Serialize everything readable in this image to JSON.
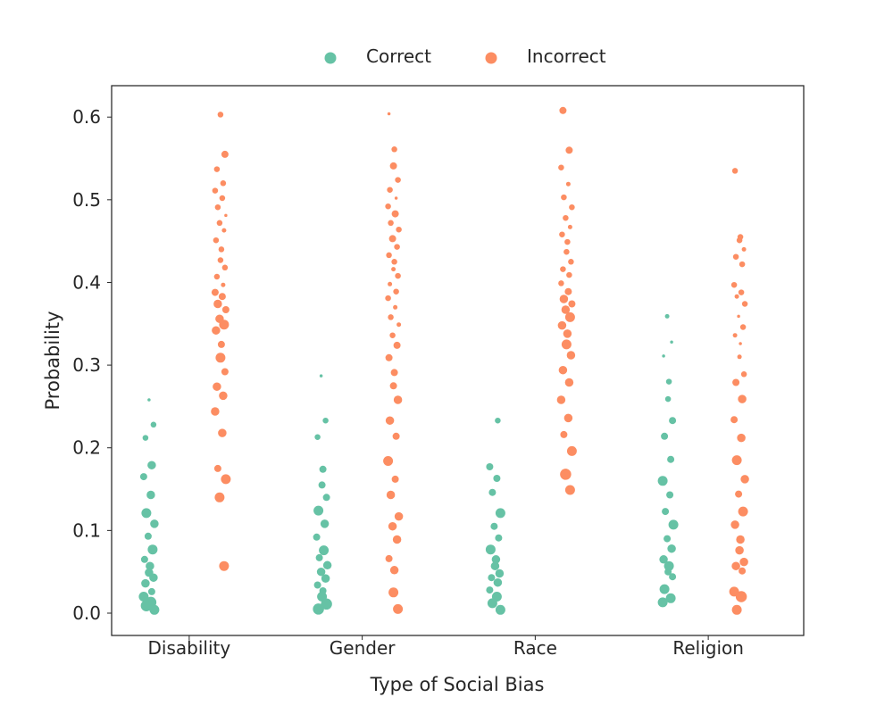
{
  "chart_data": {
    "type": "scatter",
    "subtype": "strip",
    "xlabel": "Type of Social Bias",
    "ylabel": "Probability",
    "categories": [
      "Disability",
      "Gender",
      "Race",
      "Religion"
    ],
    "ylim": [
      -0.027,
      0.638
    ],
    "yticks": [
      "0.0",
      "0.1",
      "0.2",
      "0.3",
      "0.4",
      "0.5",
      "0.6"
    ],
    "grid": false,
    "legend_position": "top-center",
    "series": [
      {
        "name": "Correct",
        "color": "#66c2a5",
        "points": [
          [
            0,
            0.258,
            1
          ],
          [
            0,
            0.228,
            3
          ],
          [
            0,
            0.212,
            3
          ],
          [
            0,
            0.179,
            5
          ],
          [
            0,
            0.165,
            4
          ],
          [
            0,
            0.143,
            5
          ],
          [
            0,
            0.121,
            6
          ],
          [
            0,
            0.108,
            5
          ],
          [
            0,
            0.093,
            4
          ],
          [
            0,
            0.077,
            6
          ],
          [
            0,
            0.065,
            4
          ],
          [
            0,
            0.057,
            5
          ],
          [
            0,
            0.049,
            5
          ],
          [
            0,
            0.043,
            5
          ],
          [
            0,
            0.036,
            5
          ],
          [
            0,
            0.026,
            4
          ],
          [
            0,
            0.02,
            6
          ],
          [
            0,
            0.013,
            7
          ],
          [
            0,
            0.009,
            7
          ],
          [
            0,
            0.004,
            6
          ],
          [
            1,
            0.287,
            1
          ],
          [
            1,
            0.233,
            3
          ],
          [
            1,
            0.213,
            3
          ],
          [
            1,
            0.174,
            4
          ],
          [
            1,
            0.155,
            4
          ],
          [
            1,
            0.14,
            4
          ],
          [
            1,
            0.124,
            6
          ],
          [
            1,
            0.108,
            5
          ],
          [
            1,
            0.092,
            4
          ],
          [
            1,
            0.076,
            6
          ],
          [
            1,
            0.067,
            4
          ],
          [
            1,
            0.058,
            5
          ],
          [
            1,
            0.05,
            5
          ],
          [
            1,
            0.042,
            5
          ],
          [
            1,
            0.034,
            4
          ],
          [
            1,
            0.027,
            4
          ],
          [
            1,
            0.02,
            6
          ],
          [
            1,
            0.011,
            7
          ],
          [
            1,
            0.005,
            7
          ],
          [
            2,
            0.233,
            3
          ],
          [
            2,
            0.177,
            4
          ],
          [
            2,
            0.163,
            4
          ],
          [
            2,
            0.146,
            4
          ],
          [
            2,
            0.121,
            6
          ],
          [
            2,
            0.105,
            4
          ],
          [
            2,
            0.091,
            4
          ],
          [
            2,
            0.077,
            6
          ],
          [
            2,
            0.065,
            5
          ],
          [
            2,
            0.057,
            5
          ],
          [
            2,
            0.048,
            5
          ],
          [
            2,
            0.043,
            4
          ],
          [
            2,
            0.037,
            5
          ],
          [
            2,
            0.028,
            4
          ],
          [
            2,
            0.02,
            6
          ],
          [
            2,
            0.012,
            6
          ],
          [
            2,
            0.004,
            6
          ],
          [
            3,
            0.359,
            2
          ],
          [
            3,
            0.328,
            1
          ],
          [
            3,
            0.311,
            1
          ],
          [
            3,
            0.28,
            3
          ],
          [
            3,
            0.259,
            3
          ],
          [
            3,
            0.233,
            4
          ],
          [
            3,
            0.214,
            4
          ],
          [
            3,
            0.186,
            4
          ],
          [
            3,
            0.16,
            6
          ],
          [
            3,
            0.143,
            4
          ],
          [
            3,
            0.123,
            4
          ],
          [
            3,
            0.107,
            6
          ],
          [
            3,
            0.09,
            4
          ],
          [
            3,
            0.078,
            5
          ],
          [
            3,
            0.065,
            5
          ],
          [
            3,
            0.057,
            6
          ],
          [
            3,
            0.05,
            4
          ],
          [
            3,
            0.044,
            4
          ],
          [
            3,
            0.029,
            6
          ],
          [
            3,
            0.018,
            6
          ],
          [
            3,
            0.013,
            6
          ]
        ]
      },
      {
        "name": "Incorrect",
        "color": "#fc8d62",
        "points": [
          [
            0,
            0.603,
            3
          ],
          [
            0,
            0.555,
            4
          ],
          [
            0,
            0.537,
            3
          ],
          [
            0,
            0.52,
            3
          ],
          [
            0,
            0.511,
            3
          ],
          [
            0,
            0.502,
            3
          ],
          [
            0,
            0.491,
            3
          ],
          [
            0,
            0.481,
            1
          ],
          [
            0,
            0.472,
            3
          ],
          [
            0,
            0.463,
            2
          ],
          [
            0,
            0.451,
            3
          ],
          [
            0,
            0.44,
            3
          ],
          [
            0,
            0.427,
            3
          ],
          [
            0,
            0.418,
            3
          ],
          [
            0,
            0.407,
            3
          ],
          [
            0,
            0.397,
            2
          ],
          [
            0,
            0.388,
            4
          ],
          [
            0,
            0.383,
            4
          ],
          [
            0,
            0.374,
            5
          ],
          [
            0,
            0.367,
            4
          ],
          [
            0,
            0.356,
            5
          ],
          [
            0,
            0.349,
            6
          ],
          [
            0,
            0.342,
            5
          ],
          [
            0,
            0.325,
            4
          ],
          [
            0,
            0.309,
            6
          ],
          [
            0,
            0.292,
            4
          ],
          [
            0,
            0.274,
            5
          ],
          [
            0,
            0.263,
            5
          ],
          [
            0,
            0.244,
            5
          ],
          [
            0,
            0.218,
            5
          ],
          [
            0,
            0.175,
            4
          ],
          [
            0,
            0.162,
            6
          ],
          [
            0,
            0.14,
            6
          ],
          [
            0,
            0.057,
            6
          ],
          [
            1,
            0.604,
            1
          ],
          [
            1,
            0.561,
            3
          ],
          [
            1,
            0.541,
            4
          ],
          [
            1,
            0.524,
            3
          ],
          [
            1,
            0.512,
            3
          ],
          [
            1,
            0.502,
            1
          ],
          [
            1,
            0.492,
            3
          ],
          [
            1,
            0.483,
            4
          ],
          [
            1,
            0.472,
            3
          ],
          [
            1,
            0.464,
            3
          ],
          [
            1,
            0.453,
            4
          ],
          [
            1,
            0.443,
            3
          ],
          [
            1,
            0.433,
            3
          ],
          [
            1,
            0.425,
            3
          ],
          [
            1,
            0.416,
            2
          ],
          [
            1,
            0.408,
            3
          ],
          [
            1,
            0.398,
            2
          ],
          [
            1,
            0.389,
            3
          ],
          [
            1,
            0.381,
            3
          ],
          [
            1,
            0.37,
            2
          ],
          [
            1,
            0.358,
            3
          ],
          [
            1,
            0.349,
            2
          ],
          [
            1,
            0.336,
            3
          ],
          [
            1,
            0.324,
            4
          ],
          [
            1,
            0.309,
            4
          ],
          [
            1,
            0.291,
            4
          ],
          [
            1,
            0.275,
            4
          ],
          [
            1,
            0.258,
            5
          ],
          [
            1,
            0.233,
            5
          ],
          [
            1,
            0.214,
            4
          ],
          [
            1,
            0.184,
            6
          ],
          [
            1,
            0.162,
            4
          ],
          [
            1,
            0.143,
            5
          ],
          [
            1,
            0.117,
            5
          ],
          [
            1,
            0.105,
            5
          ],
          [
            1,
            0.089,
            5
          ],
          [
            1,
            0.066,
            4
          ],
          [
            1,
            0.052,
            5
          ],
          [
            1,
            0.025,
            6
          ],
          [
            1,
            0.005,
            6
          ],
          [
            2,
            0.608,
            4
          ],
          [
            2,
            0.56,
            4
          ],
          [
            2,
            0.539,
            3
          ],
          [
            2,
            0.519,
            2
          ],
          [
            2,
            0.503,
            3
          ],
          [
            2,
            0.491,
            3
          ],
          [
            2,
            0.478,
            3
          ],
          [
            2,
            0.467,
            2
          ],
          [
            2,
            0.458,
            3
          ],
          [
            2,
            0.449,
            3
          ],
          [
            2,
            0.437,
            3
          ],
          [
            2,
            0.425,
            3
          ],
          [
            2,
            0.416,
            3
          ],
          [
            2,
            0.409,
            3
          ],
          [
            2,
            0.399,
            3
          ],
          [
            2,
            0.389,
            4
          ],
          [
            2,
            0.38,
            5
          ],
          [
            2,
            0.374,
            4
          ],
          [
            2,
            0.367,
            5
          ],
          [
            2,
            0.358,
            6
          ],
          [
            2,
            0.348,
            5
          ],
          [
            2,
            0.338,
            5
          ],
          [
            2,
            0.325,
            6
          ],
          [
            2,
            0.312,
            5
          ],
          [
            2,
            0.294,
            5
          ],
          [
            2,
            0.279,
            5
          ],
          [
            2,
            0.258,
            5
          ],
          [
            2,
            0.236,
            5
          ],
          [
            2,
            0.216,
            4
          ],
          [
            2,
            0.196,
            6
          ],
          [
            2,
            0.168,
            7
          ],
          [
            2,
            0.149,
            6
          ],
          [
            3,
            0.535,
            3
          ],
          [
            3,
            0.455,
            3
          ],
          [
            3,
            0.451,
            3
          ],
          [
            3,
            0.44,
            2
          ],
          [
            3,
            0.431,
            3
          ],
          [
            3,
            0.422,
            3
          ],
          [
            3,
            0.397,
            3
          ],
          [
            3,
            0.388,
            3
          ],
          [
            3,
            0.383,
            2
          ],
          [
            3,
            0.374,
            3
          ],
          [
            3,
            0.359,
            1
          ],
          [
            3,
            0.346,
            3
          ],
          [
            3,
            0.336,
            2
          ],
          [
            3,
            0.326,
            1
          ],
          [
            3,
            0.31,
            2
          ],
          [
            3,
            0.289,
            3
          ],
          [
            3,
            0.279,
            4
          ],
          [
            3,
            0.259,
            5
          ],
          [
            3,
            0.234,
            4
          ],
          [
            3,
            0.212,
            5
          ],
          [
            3,
            0.185,
            6
          ],
          [
            3,
            0.162,
            5
          ],
          [
            3,
            0.144,
            4
          ],
          [
            3,
            0.123,
            6
          ],
          [
            3,
            0.107,
            5
          ],
          [
            3,
            0.089,
            5
          ],
          [
            3,
            0.076,
            5
          ],
          [
            3,
            0.062,
            5
          ],
          [
            3,
            0.057,
            5
          ],
          [
            3,
            0.051,
            4
          ],
          [
            3,
            0.026,
            6
          ],
          [
            3,
            0.02,
            7
          ],
          [
            3,
            0.004,
            6
          ]
        ]
      }
    ]
  }
}
